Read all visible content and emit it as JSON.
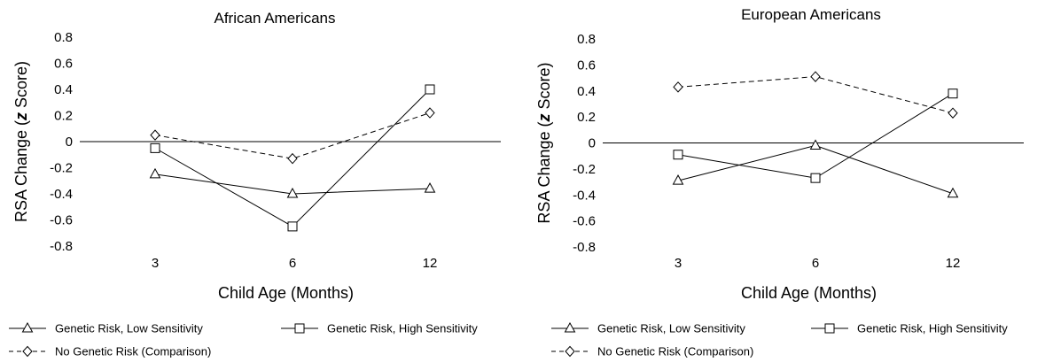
{
  "chart_data": [
    {
      "type": "line",
      "title": "African Americans",
      "xlabel": "Child Age (Months)",
      "ylabel_parts": [
        "RSA Change (",
        "z",
        " Score)"
      ],
      "categories": [
        "3",
        "6",
        "12"
      ],
      "yticks": [
        "0.8",
        "0.6",
        "0.4",
        "0.2",
        "0",
        "-0.2",
        "-0.4",
        "-0.6",
        "-0.8"
      ],
      "ylim": [
        -0.8,
        0.8
      ],
      "grid": false,
      "zero_line": true,
      "legend_position": "bottom",
      "series": [
        {
          "name": "Genetic Risk, Low Sensitivity",
          "marker": "triangle",
          "dash": "solid",
          "values": [
            -0.25,
            -0.4,
            -0.36
          ]
        },
        {
          "name": "Genetic Risk, High Sensitivity",
          "marker": "square",
          "dash": "solid",
          "values": [
            -0.05,
            -0.65,
            0.4
          ]
        },
        {
          "name": "No Genetic Risk (Comparison)",
          "marker": "diamond",
          "dash": "dashed",
          "values": [
            0.05,
            -0.13,
            0.22
          ]
        }
      ]
    },
    {
      "type": "line",
      "title": "European Americans",
      "xlabel": "Child Age (Months)",
      "ylabel_parts": [
        "RSA Change (",
        "z",
        " Score)"
      ],
      "categories": [
        "3",
        "6",
        "12"
      ],
      "yticks": [
        "0.8",
        "0.6",
        "0.4",
        "0.2",
        "0",
        "-0.2",
        "-0.4",
        "-0.6",
        "-0.8"
      ],
      "ylim": [
        -0.8,
        0.8
      ],
      "grid": false,
      "zero_line": true,
      "legend_position": "bottom",
      "series": [
        {
          "name": "Genetic Risk, Low Sensitivity",
          "marker": "triangle",
          "dash": "solid",
          "values": [
            -0.29,
            -0.02,
            -0.39
          ]
        },
        {
          "name": "Genetic Risk, High Sensitivity",
          "marker": "square",
          "dash": "solid",
          "values": [
            -0.09,
            -0.27,
            0.38
          ]
        },
        {
          "name": "No Genetic Risk (Comparison)",
          "marker": "diamond",
          "dash": "dashed",
          "values": [
            0.43,
            0.51,
            0.23
          ]
        }
      ]
    }
  ]
}
